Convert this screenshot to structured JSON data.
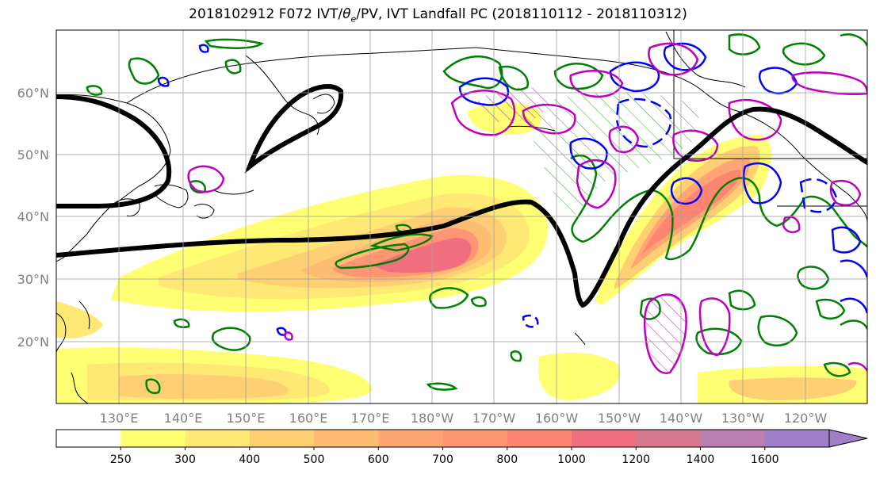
{
  "title": "2018102912 F072 IVT/θe/PV, IVT Landfall PC (2018110112 - 2018110312)",
  "title_parts": {
    "prefix": "2018102912 F072 IVT/",
    "theta": "θ",
    "theta_sub": "e",
    "suffix": "/PV, IVT Landfall PC (2018110112 - 2018110312)"
  },
  "map": {
    "projection": "cylindrical",
    "lat_labels": [
      "60°N",
      "50°N",
      "40°N",
      "30°N",
      "20°N"
    ],
    "lon_labels": [
      "130°E",
      "140°E",
      "150°E",
      "160°E",
      "170°E",
      "180°W",
      "170°W",
      "160°W",
      "150°W",
      "140°W",
      "130°W",
      "120°W"
    ],
    "grid_color": "#a0a0a0",
    "label_color": "#808080",
    "contour_colors": {
      "pv_heavy": "#000000",
      "green": "#008000",
      "blue": "#0000ff",
      "magenta": "#bf00bf"
    }
  },
  "colorbar": {
    "ticks": [
      "250",
      "300",
      "400",
      "500",
      "600",
      "700",
      "800",
      "1000",
      "1200",
      "1400",
      "1600"
    ],
    "colors": [
      "#ffffff",
      "#ffff73",
      "#ffe873",
      "#ffd073",
      "#ffbc73",
      "#ffa673",
      "#ff9673",
      "#ff8673",
      "#f07080",
      "#d87890",
      "#b87fb0",
      "#a07fc8"
    ]
  }
}
